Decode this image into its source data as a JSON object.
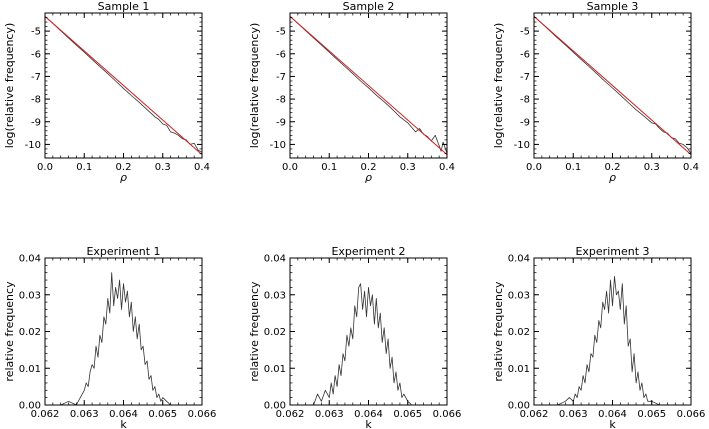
{
  "chart_data": [
    {
      "type": "line",
      "title": "Sample 1",
      "xlabel": "ρ",
      "ylabel": "log(relative frequency)",
      "xlim": [
        0.0,
        0.4
      ],
      "ylim": [
        -10.6,
        -4.2
      ],
      "xticks": [
        "0.0",
        "0.1",
        "0.2",
        "0.3",
        "0.4"
      ],
      "yticks": [
        "-5",
        "-6",
        "-7",
        "-8",
        "-9",
        "-10"
      ],
      "xtick_values": [
        0.0,
        0.1,
        0.2,
        0.3,
        0.4
      ],
      "ytick_values": [
        -5,
        -6,
        -7,
        -8,
        -9,
        -10
      ],
      "grid": false,
      "series": [
        {
          "color": "#333333",
          "x": [
            0.0,
            0.02,
            0.04,
            0.06,
            0.08,
            0.1,
            0.12,
            0.14,
            0.16,
            0.18,
            0.2,
            0.22,
            0.24,
            0.26,
            0.28,
            0.29,
            0.3,
            0.31,
            0.32,
            0.33,
            0.34,
            0.35,
            0.36,
            0.37,
            0.38,
            0.39,
            0.4
          ],
          "y": [
            -4.35,
            -4.66,
            -4.98,
            -5.3,
            -5.62,
            -5.93,
            -6.25,
            -6.57,
            -6.88,
            -7.2,
            -7.53,
            -7.84,
            -8.14,
            -8.47,
            -8.78,
            -8.9,
            -9.1,
            -9.16,
            -9.45,
            -9.5,
            -9.6,
            -9.75,
            -9.8,
            -10.0,
            -9.95,
            -10.25,
            -10.35
          ]
        },
        {
          "color": "#cc2020",
          "x": [
            0.0,
            0.4
          ],
          "y": [
            -4.35,
            -10.45
          ]
        }
      ]
    },
    {
      "type": "line",
      "title": "Sample 2",
      "xlabel": "ρ",
      "ylabel": "log(relative frequency)",
      "xlim": [
        0.0,
        0.4
      ],
      "ylim": [
        -10.6,
        -4.2
      ],
      "xticks": [
        "0.0",
        "0.1",
        "0.2",
        "0.3",
        "0.4"
      ],
      "yticks": [
        "-5",
        "-6",
        "-7",
        "-8",
        "-9",
        "-10"
      ],
      "xtick_values": [
        0.0,
        0.1,
        0.2,
        0.3,
        0.4
      ],
      "ytick_values": [
        -5,
        -6,
        -7,
        -8,
        -9,
        -10
      ],
      "grid": false,
      "series": [
        {
          "color": "#333333",
          "x": [
            0.0,
            0.02,
            0.04,
            0.06,
            0.08,
            0.1,
            0.12,
            0.14,
            0.16,
            0.18,
            0.2,
            0.22,
            0.24,
            0.26,
            0.28,
            0.3,
            0.31,
            0.32,
            0.33,
            0.34,
            0.35,
            0.36,
            0.37,
            0.38,
            0.385,
            0.39,
            0.4
          ],
          "y": [
            -4.35,
            -4.66,
            -4.98,
            -5.3,
            -5.61,
            -5.93,
            -6.25,
            -6.56,
            -6.88,
            -7.2,
            -7.5,
            -7.83,
            -8.12,
            -8.44,
            -8.78,
            -9.05,
            -9.25,
            -9.45,
            -9.3,
            -9.55,
            -9.65,
            -9.85,
            -9.6,
            -10.05,
            -10.3,
            -9.9,
            -10.4
          ]
        },
        {
          "color": "#cc2020",
          "x": [
            0.0,
            0.4
          ],
          "y": [
            -4.35,
            -10.45
          ]
        }
      ]
    },
    {
      "type": "line",
      "title": "Sample 3",
      "xlabel": "ρ",
      "ylabel": "log(relative frequency)",
      "xlim": [
        0.0,
        0.4
      ],
      "ylim": [
        -10.6,
        -4.2
      ],
      "xticks": [
        "0.0",
        "0.1",
        "0.2",
        "0.3",
        "0.4"
      ],
      "yticks": [
        "-5",
        "-6",
        "-7",
        "-8",
        "-9",
        "-10"
      ],
      "xtick_values": [
        0.0,
        0.1,
        0.2,
        0.3,
        0.4
      ],
      "ytick_values": [
        -5,
        -6,
        -7,
        -8,
        -9,
        -10
      ],
      "grid": false,
      "series": [
        {
          "color": "#333333",
          "x": [
            0.0,
            0.02,
            0.04,
            0.06,
            0.08,
            0.1,
            0.12,
            0.14,
            0.16,
            0.18,
            0.2,
            0.22,
            0.24,
            0.26,
            0.28,
            0.3,
            0.31,
            0.32,
            0.33,
            0.34,
            0.35,
            0.36,
            0.37,
            0.38,
            0.39,
            0.4
          ],
          "y": [
            -4.35,
            -4.66,
            -4.98,
            -5.3,
            -5.61,
            -5.93,
            -6.25,
            -6.56,
            -6.88,
            -7.2,
            -7.51,
            -7.83,
            -8.15,
            -8.47,
            -8.75,
            -9.05,
            -9.1,
            -9.3,
            -9.45,
            -9.5,
            -9.7,
            -9.75,
            -9.95,
            -10.0,
            -10.15,
            -10.4
          ]
        },
        {
          "color": "#cc2020",
          "x": [
            0.0,
            0.4
          ],
          "y": [
            -4.35,
            -10.45
          ]
        }
      ]
    },
    {
      "type": "line",
      "title": "Experiment 1",
      "xlabel": "k",
      "ylabel": "relative frequency",
      "xlim": [
        0.062,
        0.066
      ],
      "ylim": [
        0.0,
        0.04
      ],
      "xticks": [
        "0.062",
        "0.063",
        "0.064",
        "0.065",
        "0.066"
      ],
      "yticks": [
        "0.00",
        "0.01",
        "0.02",
        "0.03",
        "0.04"
      ],
      "xtick_values": [
        0.062,
        0.063,
        0.064,
        0.065,
        0.066
      ],
      "ytick_values": [
        0.0,
        0.01,
        0.02,
        0.03,
        0.04
      ],
      "grid": false,
      "series": [
        {
          "color": "#333333",
          "x": [
            0.0624,
            0.0626,
            0.0628,
            0.0629,
            0.063,
            0.06305,
            0.0631,
            0.06315,
            0.0632,
            0.06325,
            0.0633,
            0.06335,
            0.0634,
            0.06345,
            0.0635,
            0.06355,
            0.0636,
            0.06365,
            0.0637,
            0.06375,
            0.0638,
            0.06385,
            0.0639,
            0.06395,
            0.064,
            0.06405,
            0.0641,
            0.06415,
            0.0642,
            0.06425,
            0.0643,
            0.06435,
            0.0644,
            0.06445,
            0.0645,
            0.06455,
            0.0646,
            0.06465,
            0.0647,
            0.06475,
            0.0648,
            0.06485,
            0.0649,
            0.06495,
            0.065,
            0.0651,
            0.0652,
            0.0654
          ],
          "y": [
            0.0,
            0.001,
            0.0,
            0.002,
            0.004,
            0.006,
            0.005,
            0.009,
            0.011,
            0.01,
            0.016,
            0.013,
            0.019,
            0.017,
            0.024,
            0.022,
            0.029,
            0.025,
            0.036,
            0.027,
            0.032,
            0.029,
            0.034,
            0.026,
            0.033,
            0.028,
            0.031,
            0.024,
            0.028,
            0.02,
            0.024,
            0.018,
            0.022,
            0.015,
            0.016,
            0.011,
            0.012,
            0.007,
            0.008,
            0.004,
            0.005,
            0.002,
            0.003,
            0.001,
            0.002,
            0.001,
            0.0,
            0.0
          ]
        }
      ]
    },
    {
      "type": "line",
      "title": "Experiment 2",
      "xlabel": "k",
      "ylabel": "relative frequency",
      "xlim": [
        0.062,
        0.066
      ],
      "ylim": [
        0.0,
        0.04
      ],
      "xticks": [
        "0.062",
        "0.063",
        "0.064",
        "0.065",
        "0.066"
      ],
      "yticks": [
        "0.00",
        "0.01",
        "0.02",
        "0.03",
        "0.04"
      ],
      "xtick_values": [
        0.062,
        0.063,
        0.064,
        0.065,
        0.066
      ],
      "ytick_values": [
        0.0,
        0.01,
        0.02,
        0.03,
        0.04
      ],
      "grid": false,
      "series": [
        {
          "color": "#333333",
          "x": [
            0.0626,
            0.0627,
            0.0628,
            0.0629,
            0.063,
            0.06305,
            0.0631,
            0.06315,
            0.0632,
            0.06325,
            0.0633,
            0.06335,
            0.0634,
            0.06345,
            0.0635,
            0.06355,
            0.0636,
            0.06365,
            0.0637,
            0.06375,
            0.0638,
            0.06385,
            0.0639,
            0.06395,
            0.064,
            0.06405,
            0.0641,
            0.06415,
            0.0642,
            0.06425,
            0.0643,
            0.06435,
            0.0644,
            0.06445,
            0.0645,
            0.06455,
            0.0646,
            0.06465,
            0.0647,
            0.06475,
            0.0648,
            0.06485,
            0.0649,
            0.065,
            0.0651,
            0.0652
          ],
          "y": [
            0.0,
            0.003,
            0.001,
            0.004,
            0.002,
            0.006,
            0.003,
            0.008,
            0.005,
            0.011,
            0.008,
            0.014,
            0.012,
            0.019,
            0.016,
            0.021,
            0.018,
            0.027,
            0.024,
            0.032,
            0.033,
            0.026,
            0.031,
            0.024,
            0.032,
            0.027,
            0.03,
            0.022,
            0.029,
            0.021,
            0.025,
            0.017,
            0.021,
            0.014,
            0.018,
            0.01,
            0.013,
            0.006,
            0.009,
            0.004,
            0.006,
            0.002,
            0.003,
            0.001,
            0.0,
            0.0
          ]
        }
      ]
    },
    {
      "type": "line",
      "title": "Experiment 3",
      "xlabel": "k",
      "ylabel": "relative frequency",
      "xlim": [
        0.062,
        0.066
      ],
      "ylim": [
        0.0,
        0.04
      ],
      "xticks": [
        "0.062",
        "0.063",
        "0.064",
        "0.065",
        "0.066"
      ],
      "yticks": [
        "0.00",
        "0.01",
        "0.02",
        "0.03",
        "0.04"
      ],
      "xtick_values": [
        0.062,
        0.063,
        0.064,
        0.065,
        0.066
      ],
      "ytick_values": [
        0.0,
        0.01,
        0.02,
        0.03,
        0.04
      ],
      "grid": false,
      "series": [
        {
          "color": "#333333",
          "x": [
            0.0626,
            0.0628,
            0.0629,
            0.063,
            0.06305,
            0.0631,
            0.06315,
            0.0632,
            0.06325,
            0.0633,
            0.06335,
            0.0634,
            0.06345,
            0.0635,
            0.06355,
            0.0636,
            0.06365,
            0.0637,
            0.06375,
            0.0638,
            0.06385,
            0.0639,
            0.06395,
            0.064,
            0.06405,
            0.0641,
            0.06415,
            0.0642,
            0.06425,
            0.0643,
            0.06435,
            0.0644,
            0.06445,
            0.0645,
            0.06455,
            0.0646,
            0.06465,
            0.0647,
            0.06475,
            0.0648,
            0.06485,
            0.0649,
            0.065,
            0.0652
          ],
          "y": [
            0.0,
            0.001,
            0.002,
            0.001,
            0.003,
            0.002,
            0.005,
            0.004,
            0.008,
            0.006,
            0.011,
            0.009,
            0.014,
            0.013,
            0.019,
            0.017,
            0.023,
            0.021,
            0.028,
            0.026,
            0.031,
            0.025,
            0.034,
            0.027,
            0.035,
            0.03,
            0.031,
            0.026,
            0.033,
            0.022,
            0.027,
            0.016,
            0.018,
            0.009,
            0.014,
            0.006,
            0.009,
            0.004,
            0.006,
            0.002,
            0.003,
            0.001,
            0.001,
            0.0
          ]
        }
      ]
    }
  ]
}
